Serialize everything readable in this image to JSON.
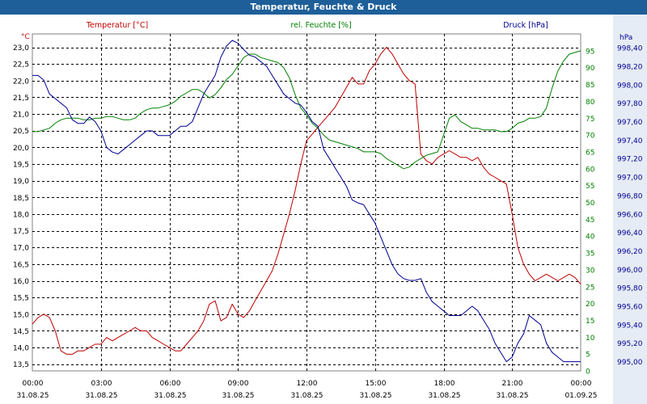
{
  "window": {
    "title": "Temperatur, Feuchte & Druck"
  },
  "colors": {
    "temperature": "#c00000",
    "humidity": "#008000",
    "pressure": "#000090",
    "grid": "#000000",
    "title_bg": "#1e5f99"
  },
  "chart_data": {
    "type": "line",
    "title": "Temperatur, Feuchte & Druck",
    "grid": true,
    "x": {
      "range_hours": [
        0,
        24
      ],
      "tick_times": [
        "00:00",
        "03:00",
        "06:00",
        "09:00",
        "12:00",
        "15:00",
        "18:00",
        "21:00",
        "00:00"
      ],
      "tick_dates": [
        "31.08.25",
        "31.08.25",
        "31.08.25",
        "31.08.25",
        "31.08.25",
        "31.08.25",
        "31.08.25",
        "31.08.25",
        "01.09.25"
      ]
    },
    "axes": {
      "temperature": {
        "label": "Temperatur [°C]",
        "unit": "°C",
        "side": "left",
        "ylim": [
          13.3,
          23.4
        ],
        "ticks": [
          "13,5",
          "14,0",
          "14,5",
          "15,0",
          "15,5",
          "16,0",
          "16,5",
          "17,0",
          "17,5",
          "18,0",
          "18,5",
          "19,0",
          "19,5",
          "20,0",
          "20,5",
          "21,0",
          "21,5",
          "22,0",
          "22,5",
          "23,0"
        ]
      },
      "humidity": {
        "label": "rel. Feuchte [%]",
        "unit": "%",
        "side": "right",
        "ylim": [
          0,
          100
        ],
        "ticks": [
          "0",
          "5",
          "10",
          "15",
          "20",
          "25",
          "30",
          "35",
          "40",
          "45",
          "50",
          "55",
          "60",
          "65",
          "70",
          "75",
          "80",
          "85",
          "90",
          "95"
        ]
      },
      "pressure": {
        "label": "Druck [hPa]",
        "unit": "hPa",
        "side": "right-outer",
        "ylim": [
          994.9,
          998.55
        ],
        "ticks": [
          "995,00",
          "995,20",
          "995,40",
          "995,60",
          "995,80",
          "996,00",
          "996,20",
          "996,40",
          "996,60",
          "996,80",
          "997,00",
          "997,20",
          "997,40",
          "997,60",
          "997,80",
          "998,00",
          "998,20",
          "998,40"
        ]
      }
    },
    "series": [
      {
        "name": "Temperatur",
        "axis": "temperature",
        "color": "#c00000",
        "x": [
          0,
          0.25,
          0.5,
          0.75,
          1.0,
          1.25,
          1.5,
          1.75,
          2.0,
          2.25,
          2.5,
          2.75,
          3.0,
          3.25,
          3.5,
          3.75,
          4.0,
          4.25,
          4.5,
          4.75,
          5.0,
          5.25,
          5.5,
          5.75,
          6.0,
          6.25,
          6.5,
          6.75,
          7.0,
          7.25,
          7.5,
          7.75,
          8.0,
          8.25,
          8.5,
          8.75,
          9.0,
          9.25,
          9.5,
          9.75,
          10.0,
          10.25,
          10.5,
          10.75,
          11.0,
          11.25,
          11.5,
          11.75,
          12.0,
          12.25,
          12.5,
          12.75,
          13.0,
          13.25,
          13.5,
          13.75,
          14.0,
          14.25,
          14.5,
          14.75,
          15.0,
          15.25,
          15.5,
          15.75,
          16.0,
          16.25,
          16.5,
          16.75,
          17.0,
          17.25,
          17.5,
          17.75,
          18.0,
          18.25,
          18.5,
          18.75,
          19.0,
          19.25,
          19.5,
          19.75,
          20.0,
          20.25,
          20.5,
          20.75,
          21.0,
          21.25,
          21.5,
          21.75,
          22.0,
          22.25,
          22.5,
          22.75,
          23.0,
          23.25,
          23.5,
          23.75,
          24.0
        ],
        "values": [
          14.7,
          14.9,
          15.0,
          14.9,
          14.5,
          13.9,
          13.8,
          13.8,
          13.9,
          13.9,
          14.0,
          14.1,
          14.1,
          14.3,
          14.2,
          14.3,
          14.4,
          14.5,
          14.6,
          14.5,
          14.5,
          14.3,
          14.2,
          14.1,
          14.0,
          13.9,
          13.9,
          14.1,
          14.3,
          14.5,
          14.8,
          15.3,
          15.4,
          14.8,
          14.9,
          15.3,
          15.0,
          14.9,
          15.1,
          15.4,
          15.7,
          16.0,
          16.3,
          16.8,
          17.4,
          18.0,
          18.7,
          19.5,
          20.2,
          20.4,
          20.6,
          20.8,
          21.0,
          21.2,
          21.5,
          21.8,
          22.1,
          21.9,
          21.9,
          22.3,
          22.5,
          22.8,
          23.0,
          22.8,
          22.5,
          22.2,
          22.0,
          21.9,
          19.8,
          19.6,
          19.5,
          19.7,
          19.8,
          19.9,
          19.8,
          19.7,
          19.7,
          19.6,
          19.7,
          19.4,
          19.2,
          19.1,
          19.0,
          18.9,
          18.0,
          17.0,
          16.5,
          16.2,
          16.0,
          16.1,
          16.2,
          16.1,
          16.0,
          16.1,
          16.2,
          16.1,
          15.9
        ]
      },
      {
        "name": "rel. Feuchte",
        "axis": "humidity",
        "color": "#008000",
        "x": [
          0,
          0.25,
          0.5,
          0.75,
          1.0,
          1.25,
          1.5,
          1.75,
          2.0,
          2.25,
          2.5,
          2.75,
          3.0,
          3.25,
          3.5,
          3.75,
          4.0,
          4.25,
          4.5,
          4.75,
          5.0,
          5.25,
          5.5,
          5.75,
          6.0,
          6.25,
          6.5,
          6.75,
          7.0,
          7.25,
          7.5,
          7.75,
          8.0,
          8.25,
          8.5,
          8.75,
          9.0,
          9.25,
          9.5,
          9.75,
          10.0,
          10.25,
          10.5,
          10.75,
          11.0,
          11.25,
          11.5,
          11.75,
          12.0,
          12.25,
          12.5,
          12.75,
          13.0,
          13.25,
          13.5,
          13.75,
          14.0,
          14.25,
          14.5,
          14.75,
          15.0,
          15.25,
          15.5,
          15.75,
          16.0,
          16.25,
          16.5,
          16.75,
          17.0,
          17.25,
          17.5,
          17.75,
          18.0,
          18.25,
          18.5,
          18.75,
          19.0,
          19.25,
          19.5,
          19.75,
          20.0,
          20.25,
          20.5,
          20.75,
          21.0,
          21.25,
          21.5,
          21.75,
          22.0,
          22.25,
          22.5,
          22.75,
          23.0,
          23.25,
          23.5,
          23.75,
          24.0
        ],
        "values": [
          71.0,
          71.0,
          71.5,
          72.0,
          73.5,
          74.5,
          75.0,
          75.0,
          75.0,
          74.5,
          74.5,
          75.0,
          75.0,
          75.5,
          75.5,
          75.0,
          74.5,
          74.5,
          75.0,
          76.5,
          77.5,
          78.0,
          78.0,
          78.5,
          79.0,
          80.0,
          81.5,
          82.5,
          83.5,
          83.5,
          82.5,
          81.0,
          82.0,
          84.0,
          86.5,
          88.0,
          90.5,
          93.0,
          94.0,
          94.0,
          93.0,
          92.5,
          92.0,
          91.5,
          90.0,
          87.0,
          82.0,
          78.0,
          76.0,
          73.5,
          72.0,
          70.0,
          68.5,
          68.0,
          67.5,
          67.0,
          66.5,
          66.0,
          65.0,
          65.0,
          65.0,
          64.5,
          63.0,
          62.0,
          61.0,
          60.0,
          60.5,
          62.0,
          63.0,
          64.0,
          64.5,
          65.0,
          70.0,
          75.0,
          76.0,
          74.0,
          73.0,
          72.0,
          72.0,
          71.5,
          71.5,
          71.5,
          71.0,
          71.0,
          72.0,
          73.5,
          74.0,
          75.0,
          75.0,
          75.5,
          78.0,
          84.0,
          89.0,
          92.0,
          94.0,
          94.5,
          95.0
        ]
      },
      {
        "name": "Druck",
        "axis": "pressure",
        "color": "#000090",
        "x": [
          0,
          0.25,
          0.5,
          0.75,
          1.0,
          1.25,
          1.5,
          1.75,
          2.0,
          2.25,
          2.5,
          2.75,
          3.0,
          3.25,
          3.5,
          3.75,
          4.0,
          4.25,
          4.5,
          4.75,
          5.0,
          5.25,
          5.5,
          5.75,
          6.0,
          6.25,
          6.5,
          6.75,
          7.0,
          7.25,
          7.5,
          7.75,
          8.0,
          8.25,
          8.5,
          8.75,
          9.0,
          9.25,
          9.5,
          9.75,
          10.0,
          10.25,
          10.5,
          10.75,
          11.0,
          11.25,
          11.5,
          11.75,
          12.0,
          12.25,
          12.5,
          12.75,
          13.0,
          13.25,
          13.5,
          13.75,
          14.0,
          14.25,
          14.5,
          14.75,
          15.0,
          15.25,
          15.5,
          15.75,
          16.0,
          16.25,
          16.5,
          16.75,
          17.0,
          17.25,
          17.5,
          17.75,
          18.0,
          18.25,
          18.5,
          18.75,
          19.0,
          19.25,
          19.5,
          19.75,
          20.0,
          20.25,
          20.5,
          20.75,
          21.0,
          21.25,
          21.5,
          21.75,
          22.0,
          22.25,
          22.5,
          22.75,
          23.0,
          23.25,
          23.5,
          23.75,
          24.0
        ],
        "values": [
          998.1,
          998.1,
          998.05,
          997.9,
          997.85,
          997.8,
          997.75,
          997.62,
          997.58,
          997.58,
          997.65,
          997.6,
          997.5,
          997.32,
          997.27,
          997.25,
          997.3,
          997.35,
          997.4,
          997.45,
          997.5,
          997.5,
          997.45,
          997.45,
          997.45,
          997.5,
          997.55,
          997.55,
          997.6,
          997.75,
          997.9,
          998.0,
          998.1,
          998.3,
          998.42,
          998.48,
          998.45,
          998.38,
          998.32,
          998.3,
          998.25,
          998.2,
          998.1,
          998.0,
          997.9,
          997.85,
          997.8,
          997.78,
          997.7,
          997.6,
          997.55,
          997.3,
          997.2,
          997.1,
          997.0,
          996.9,
          996.75,
          996.72,
          996.7,
          996.6,
          996.5,
          996.35,
          996.2,
          996.05,
          995.95,
          995.9,
          995.88,
          995.88,
          995.9,
          995.75,
          995.65,
          995.6,
          995.55,
          995.5,
          995.5,
          995.5,
          995.55,
          995.6,
          995.55,
          995.45,
          995.35,
          995.2,
          995.1,
          995.0,
          995.05,
          995.2,
          995.3,
          995.5,
          995.45,
          995.4,
          995.2,
          995.1,
          995.05,
          995.0,
          995.0,
          995.0,
          995.0
        ]
      }
    ]
  }
}
